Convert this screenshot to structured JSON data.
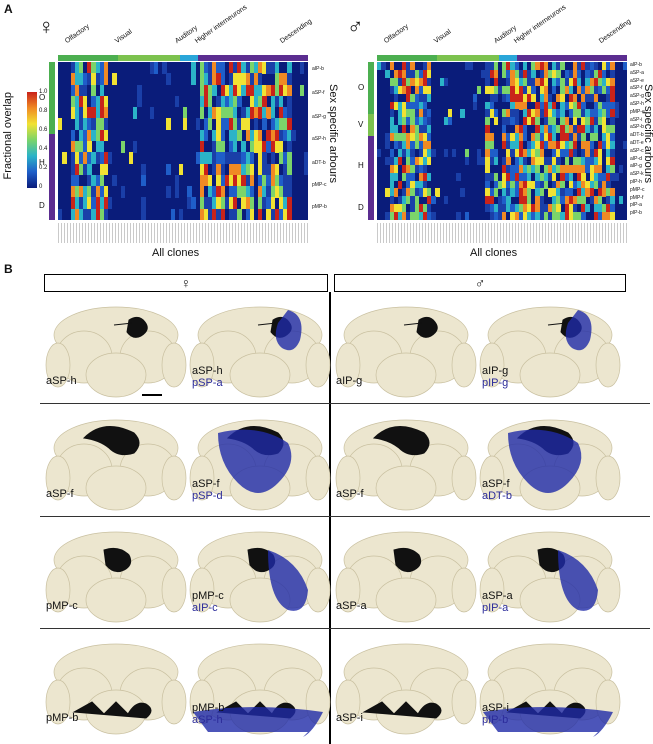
{
  "panel_a_letter": "A",
  "panel_b_letter": "B",
  "female_symbol": "♀",
  "male_symbol": "♂",
  "categories": [
    "Olfactory",
    "Visual",
    "Auditory",
    "Higher interneurons",
    "Descending"
  ],
  "colorbar": {
    "title": "Fractional overlap",
    "ticks": [
      "0",
      "0.2",
      "0.4",
      "0.6",
      "0.8",
      "1.0"
    ],
    "colors": [
      "#0a1c7a",
      "#1f5ec9",
      "#2bb3c8",
      "#7bd46a",
      "#f1e233",
      "#f08a24",
      "#c9231a"
    ]
  },
  "left_heatmap": {
    "x_title": "All clones",
    "y_title": "Sex specific arbours",
    "row_labels": [
      "aIP-b",
      "aSP-f",
      "aSP-g",
      "aSP-h",
      "aDT-b",
      "pMP-c",
      "pMP-b"
    ],
    "groups": [
      "O",
      "H",
      "D"
    ]
  },
  "right_heatmap": {
    "x_title": "All clones",
    "y_title": "Sex specific arbours",
    "row_labels": [
      "aIP-b",
      "aSP-a",
      "aSP-e",
      "aSP-f",
      "aSP-g",
      "aSP-h",
      "pMP-e",
      "aSP-i",
      "aSP-b",
      "aDT-b",
      "aDT-e",
      "aSP-c",
      "aIP-d",
      "aIP-g",
      "aSP-k",
      "pIP-h",
      "pMP-c",
      "pMP-f",
      "pIP-a",
      "pIP-b"
    ],
    "groups": [
      "O",
      "V",
      "H",
      "D"
    ]
  },
  "brain_panels": [
    {
      "primary": "aSP-h",
      "secondary": ""
    },
    {
      "primary": "aSP-h",
      "secondary": "pSP-a"
    },
    {
      "primary": "aIP-g",
      "secondary": ""
    },
    {
      "primary": "aIP-g",
      "secondary": "pIP-g"
    },
    {
      "primary": "aSP-f",
      "secondary": ""
    },
    {
      "primary": "aSP-f",
      "secondary": "pSP-d"
    },
    {
      "primary": "aSP-f",
      "secondary": ""
    },
    {
      "primary": "aSP-f",
      "secondary": "aDT-b"
    },
    {
      "primary": "pMP-c",
      "secondary": ""
    },
    {
      "primary": "pMP-c",
      "secondary": "aIP-c"
    },
    {
      "primary": "aSP-a",
      "secondary": ""
    },
    {
      "primary": "aSP-a",
      "secondary": "pIP-a"
    },
    {
      "primary": "pMP-b",
      "secondary": ""
    },
    {
      "primary": "pMP-b",
      "secondary": "aSP-h"
    },
    {
      "primary": "aSP-i",
      "secondary": ""
    },
    {
      "primary": "aSP-i",
      "secondary": "pIP-b"
    }
  ]
}
